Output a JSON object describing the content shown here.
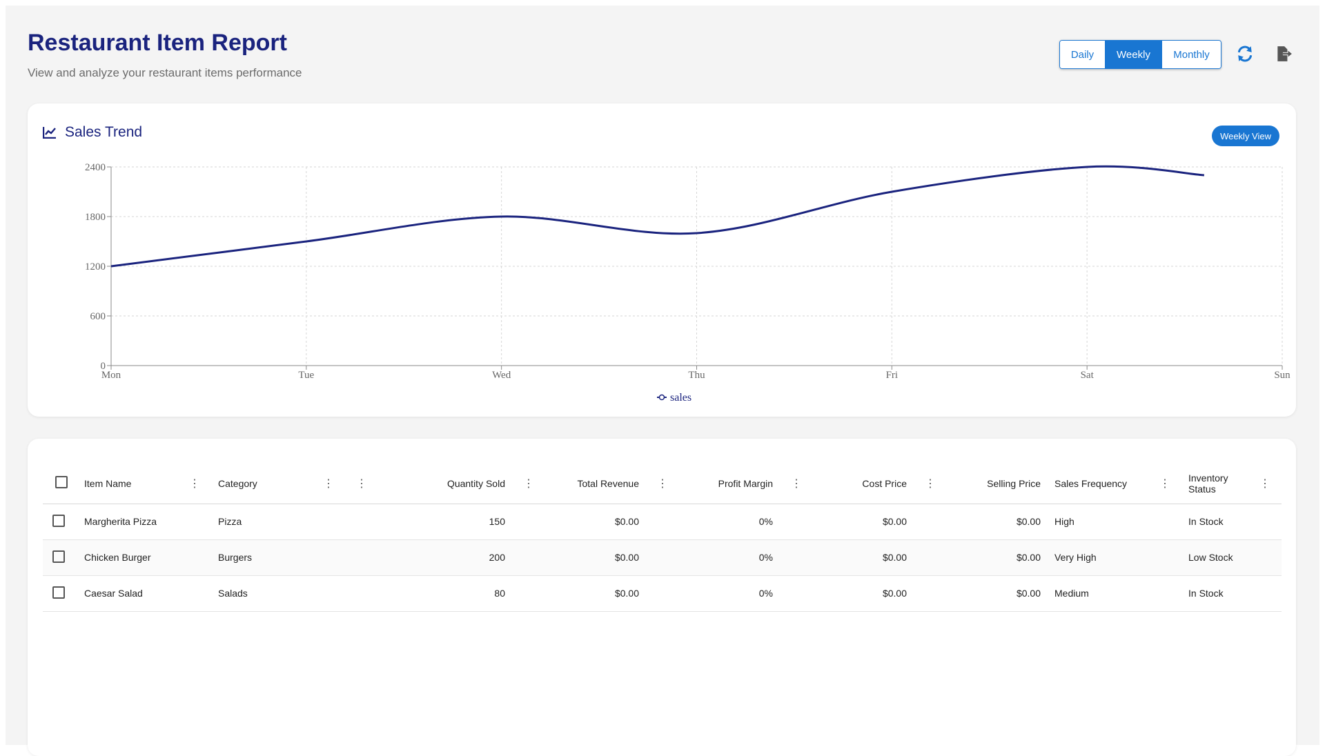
{
  "header": {
    "title": "Restaurant Item Report",
    "subtitle": "View and analyze your restaurant items performance"
  },
  "period_toggle": {
    "options": [
      "Daily",
      "Weekly",
      "Monthly"
    ],
    "selected": "Weekly"
  },
  "toolbar": {
    "refresh_icon": "refresh-icon",
    "export_icon": "export-icon"
  },
  "chart_card": {
    "title": "Sales Trend",
    "icon": "trend-chart-icon",
    "chip_label": "Weekly View"
  },
  "chart_data": {
    "type": "line",
    "categories": [
      "Mon",
      "Tue",
      "Wed",
      "Thu",
      "Fri",
      "Sat",
      "Sun"
    ],
    "series": [
      {
        "name": "sales",
        "values": [
          1200,
          1500,
          1800,
          1600,
          2100,
          2400,
          2300
        ]
      }
    ],
    "ylim": [
      0,
      2400
    ],
    "yticks": [
      0,
      600,
      1200,
      1800,
      2400
    ],
    "grid": true,
    "legend": "bottom-center",
    "color": "#1a237e"
  },
  "table": {
    "columns": [
      "Item Name",
      "Category",
      "",
      "Quantity Sold",
      "Total Revenue",
      "Profit Margin",
      "Cost Price",
      "Selling Price",
      "Sales Frequency",
      "Inventory Status"
    ],
    "rows": [
      [
        "Margherita Pizza",
        "Pizza",
        "",
        "150",
        "$0.00",
        "0%",
        "$0.00",
        "$0.00",
        "High",
        "In Stock"
      ],
      [
        "Chicken Burger",
        "Burgers",
        "",
        "200",
        "$0.00",
        "0%",
        "$0.00",
        "$0.00",
        "Very High",
        "Low Stock"
      ],
      [
        "Caesar Salad",
        "Salads",
        "",
        "80",
        "$0.00",
        "0%",
        "$0.00",
        "$0.00",
        "Medium",
        "In Stock"
      ]
    ]
  },
  "colors": {
    "primary": "#1976d2",
    "title": "#1a237e",
    "background": "#f4f4f4"
  }
}
